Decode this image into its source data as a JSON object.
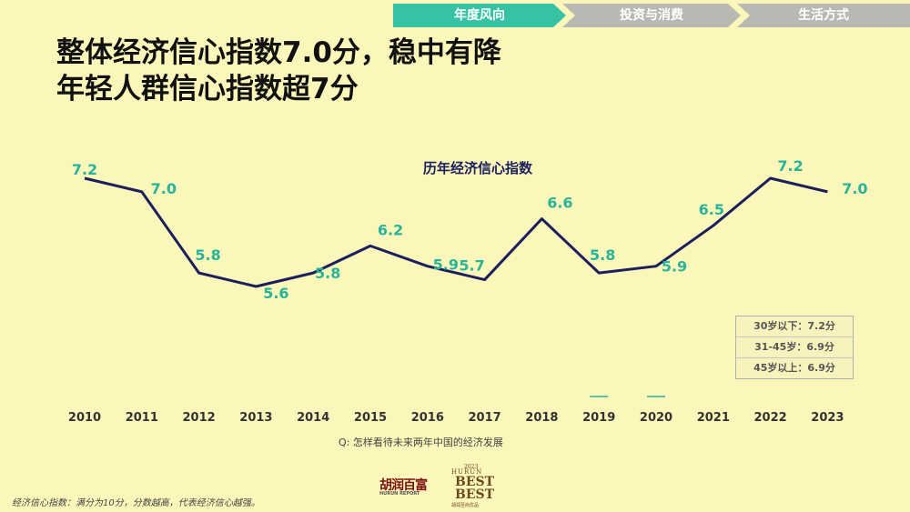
{
  "tabs": [
    {
      "label": "年度风向",
      "active": true
    },
    {
      "label": "投资与消费",
      "active": false
    },
    {
      "label": "生活方式",
      "active": false
    }
  ],
  "title": {
    "line1": "整体经济信心指数7.0分，稳中有降",
    "line2": "年轻人群信心指数超7分"
  },
  "legend_rows": [
    "30岁以下：7.2分",
    "31-45岁：6.9分",
    "45岁以上：6.9分"
  ],
  "question": "Q: 怎样看待未来两年中国的经济发展",
  "footnote": "经济信心指数：满分为10分，分数越高，代表经济信心越强。",
  "logos": {
    "hurun_cn": "胡润百富",
    "hurun_en": "HURUN REPORT",
    "best_year": "2023",
    "best_brand": "HURUN",
    "best_word_1": "BEST",
    "best_word_2": "BEST",
    "best_sub": "胡润至尚优品"
  },
  "colors": {
    "accent": "#37c2a3",
    "line": "#1b1f5e",
    "label": "#2ab39a",
    "background": "#fbf6b9",
    "inactive_tab": "#b9b9b4"
  },
  "chart_data": {
    "type": "line",
    "title": "历年经济信心指数",
    "x": [
      "2010",
      "2011",
      "2012",
      "2013",
      "2014",
      "2015",
      "2016",
      "2017",
      "2018",
      "2019",
      "2020",
      "2021",
      "2022",
      "2023"
    ],
    "series": [
      {
        "values": [
          7.2,
          7.0,
          5.8,
          5.6,
          5.8,
          6.2,
          5.9,
          5.7,
          6.6,
          5.8,
          5.9,
          6.5,
          7.2,
          7.0
        ]
      }
    ],
    "data_labels": [
      "7.2",
      "7.0",
      "5.8",
      "5.6",
      "5.8",
      "6.2",
      "5.9",
      "5.7",
      "6.6",
      "5.8",
      "5.9",
      "6.5",
      "7.2",
      "7.0"
    ],
    "ylim": [
      5.6,
      7.2
    ],
    "grid": false,
    "legend": "none"
  }
}
